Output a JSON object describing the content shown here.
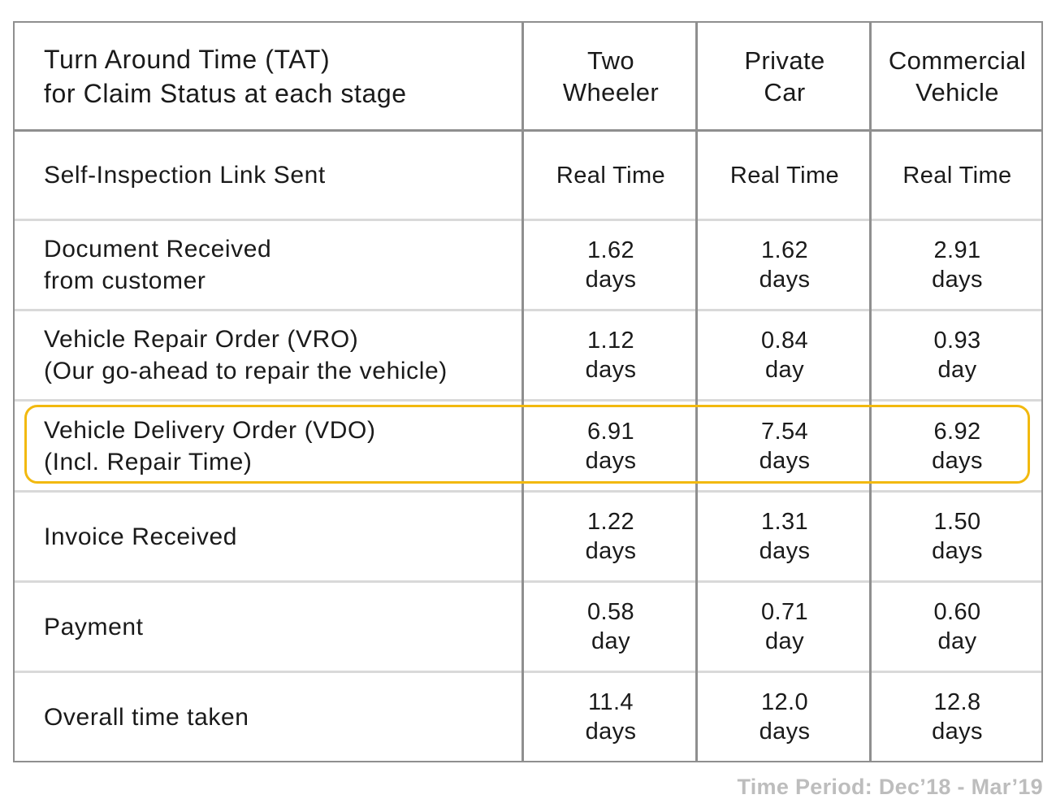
{
  "header": {
    "title_line1": "Turn Around Time (TAT)",
    "title_line2": "for Claim Status at each stage",
    "columns": [
      {
        "line1": "Two",
        "line2": "Wheeler"
      },
      {
        "line1": "Private",
        "line2": "Car"
      },
      {
        "line1": "Commercial",
        "line2": "Vehicle"
      }
    ]
  },
  "rows": [
    {
      "line1": "Self-Inspection Link Sent",
      "line2": "",
      "values": [
        {
          "line1": "Real Time",
          "line2": ""
        },
        {
          "line1": "Real Time",
          "line2": ""
        },
        {
          "line1": "Real Time",
          "line2": ""
        }
      ]
    },
    {
      "line1": "Document Received",
      "line2": "from customer",
      "values": [
        {
          "line1": "1.62",
          "line2": "days"
        },
        {
          "line1": "1.62",
          "line2": "days"
        },
        {
          "line1": "2.91",
          "line2": "days"
        }
      ]
    },
    {
      "line1": "Vehicle Repair Order (VRO)",
      "line2": "(Our go-ahead to repair the vehicle)",
      "values": [
        {
          "line1": "1.12",
          "line2": "days"
        },
        {
          "line1": "0.84",
          "line2": "day"
        },
        {
          "line1": "0.93",
          "line2": "day"
        }
      ]
    },
    {
      "line1": "Vehicle Delivery Order (VDO)",
      "line2": "(Incl. Repair Time)",
      "values": [
        {
          "line1": "6.91",
          "line2": "days"
        },
        {
          "line1": "7.54",
          "line2": "days"
        },
        {
          "line1": "6.92",
          "line2": "days"
        }
      ]
    },
    {
      "line1": "Invoice Received",
      "line2": "",
      "values": [
        {
          "line1": "1.22",
          "line2": "days"
        },
        {
          "line1": "1.31",
          "line2": "days"
        },
        {
          "line1": "1.50",
          "line2": "days"
        }
      ]
    },
    {
      "line1": "Payment",
      "line2": "",
      "values": [
        {
          "line1": "0.58",
          "line2": "day"
        },
        {
          "line1": "0.71",
          "line2": "day"
        },
        {
          "line1": "0.60",
          "line2": "day"
        }
      ]
    },
    {
      "line1": "Overall time taken",
      "line2": "",
      "values": [
        {
          "line1": "11.4",
          "line2": "days"
        },
        {
          "line1": "12.0",
          "line2": "days"
        },
        {
          "line1": "12.8",
          "line2": "days"
        }
      ]
    }
  ],
  "highlight_color": "#f2b90f",
  "footnote": "Time Period: Dec’18 - Mar’19"
}
